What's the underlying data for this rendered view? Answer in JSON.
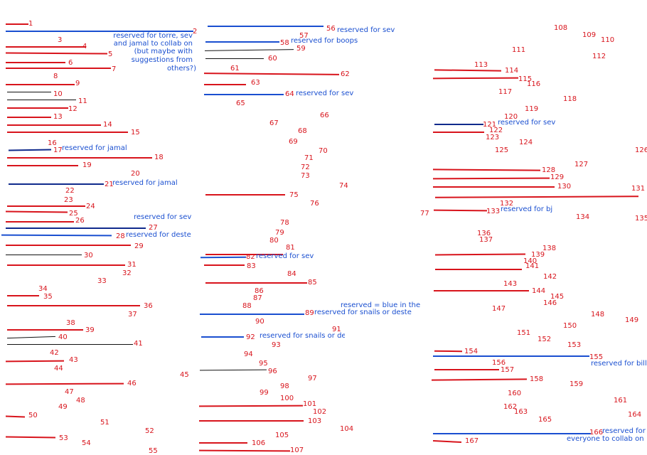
{
  "colors": {
    "red": "#d8141c",
    "blue": "#1a4fd0",
    "navy": "#102a8c",
    "black": "#111111"
  },
  "numbers": [
    "1",
    "2",
    "3",
    "4",
    "5",
    "6",
    "7",
    "8",
    "9",
    "10",
    "11",
    "12",
    "13",
    "14",
    "15",
    "16",
    "17",
    "18",
    "19",
    "20",
    "21",
    "22",
    "23",
    "24",
    "25",
    "26",
    "27",
    "28",
    "29",
    "30",
    "31",
    "32",
    "33",
    "34",
    "35",
    "36",
    "37",
    "38",
    "39",
    "40",
    "41",
    "42",
    "43",
    "44",
    "45",
    "46",
    "47",
    "48",
    "49",
    "50",
    "51",
    "52",
    "53",
    "54",
    "55",
    "56",
    "57",
    "58",
    "59",
    "60",
    "61",
    "62",
    "63",
    "64",
    "65",
    "66",
    "67",
    "68",
    "69",
    "70",
    "71",
    "72",
    "73",
    "74",
    "75",
    "76",
    "77",
    "78",
    "79",
    "80",
    "81",
    "82",
    "83",
    "84",
    "85",
    "86",
    "87",
    "88",
    "89",
    "90",
    "91",
    "92",
    "93",
    "94",
    "95",
    "96",
    "97",
    "98",
    "99",
    "100",
    "101",
    "102",
    "103",
    "104",
    "105",
    "106",
    "107",
    "108",
    "109",
    "110",
    "111",
    "112",
    "113",
    "114",
    "115",
    "116",
    "117",
    "118",
    "119",
    "120",
    "121",
    "122",
    "123",
    "124",
    "125",
    "126",
    "127",
    "128",
    "129",
    "130",
    "131",
    "132",
    "133",
    "134",
    "135",
    "136",
    "137",
    "138",
    "139",
    "140",
    "141",
    "142",
    "143",
    "144",
    "145",
    "146",
    "147",
    "148",
    "149",
    "150",
    "151",
    "152",
    "153",
    "154",
    "155",
    "156",
    "157",
    "158",
    "159",
    "160",
    "161",
    "162",
    "163",
    "164",
    "165",
    "166",
    "167"
  ],
  "notes": {
    "torre_1": "reserved for torre, sev",
    "torre_2": "and jamal to collab on",
    "torre_3": "(but maybe with",
    "torre_4": "suggestions from",
    "torre_5": "others?)",
    "jamal_17": "reserved for jamal",
    "jamal_21": "reserved for jamal",
    "sev_27": "reserved for sev",
    "deste_28": "reserved for deste",
    "sev_56": "reserved for sev",
    "boops_58": "reserved for boops",
    "sev_64": "reserved for sev",
    "sev_82": "reserved for sev",
    "legend": "reserved = blue in the loo",
    "snails_89": "reserved for snails or deste",
    "snails_92": "reserved for snails or deste",
    "sev_121": "reserved for sev",
    "bj_133": "reserved for bj",
    "bill_155": "reserved for bill",
    "collab_166_1": "reserved for",
    "collab_166_2": "everyone to collab on"
  }
}
